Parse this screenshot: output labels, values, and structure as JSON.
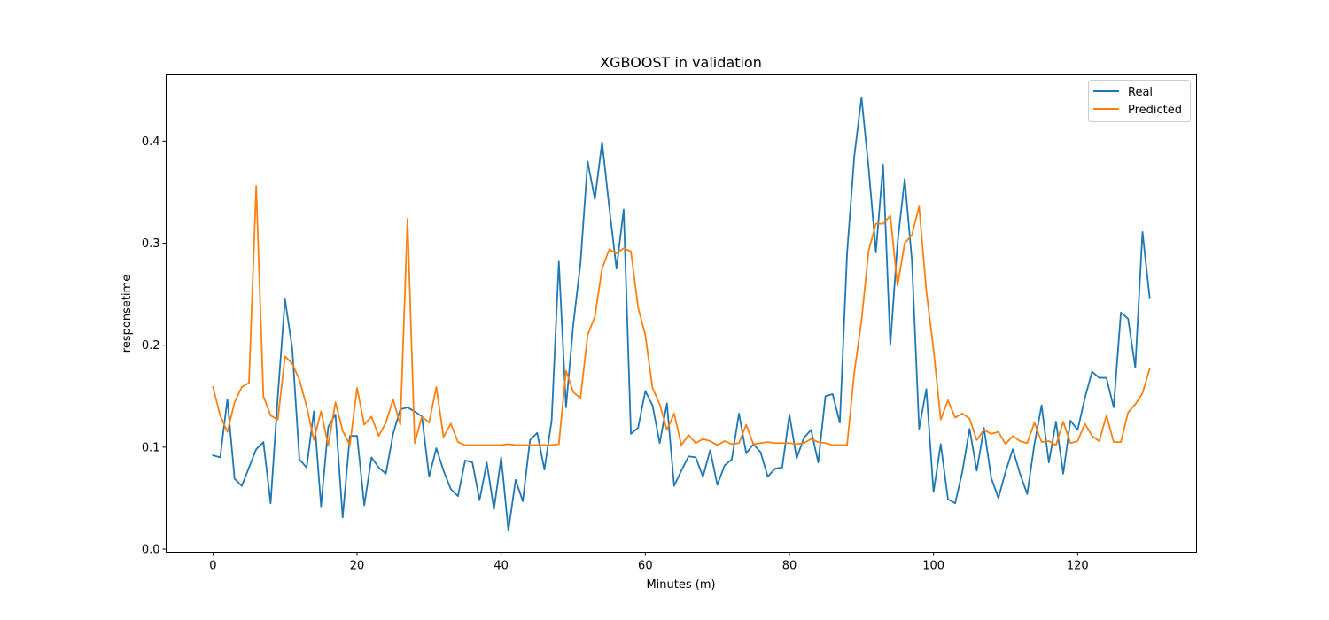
{
  "chart_data": {
    "type": "line",
    "title": "XGBOOST in validation",
    "xlabel": "Minutes (m)",
    "ylabel": "responsetime",
    "xlim": [
      -6.5,
      136.5
    ],
    "ylim": [
      -0.003,
      0.465
    ],
    "xticks": [
      0,
      20,
      40,
      60,
      80,
      100,
      120
    ],
    "yticks": [
      0.0,
      0.1,
      0.2,
      0.3,
      0.4
    ],
    "ytick_labels": [
      "0.0",
      "0.1",
      "0.2",
      "0.3",
      "0.4"
    ],
    "grid": false,
    "legend_position": "top-right",
    "colors": {
      "Real": "#1f77b4",
      "Predicted": "#ff7f0e"
    },
    "x": [
      0,
      1,
      2,
      3,
      4,
      5,
      6,
      7,
      8,
      9,
      10,
      11,
      12,
      13,
      14,
      15,
      16,
      17,
      18,
      19,
      20,
      21,
      22,
      23,
      24,
      25,
      26,
      27,
      28,
      29,
      30,
      31,
      32,
      33,
      34,
      35,
      36,
      37,
      38,
      39,
      40,
      41,
      42,
      43,
      44,
      45,
      46,
      47,
      48,
      49,
      50,
      51,
      52,
      53,
      54,
      55,
      56,
      57,
      58,
      59,
      60,
      61,
      62,
      63,
      64,
      65,
      66,
      67,
      68,
      69,
      70,
      71,
      72,
      73,
      74,
      75,
      76,
      77,
      78,
      79,
      80,
      81,
      82,
      83,
      84,
      85,
      86,
      87,
      88,
      89,
      90,
      91,
      92,
      93,
      94,
      95,
      96,
      97,
      98,
      99,
      100,
      101,
      102,
      103,
      104,
      105,
      106,
      107,
      108,
      109,
      110,
      111,
      112,
      113,
      114,
      115,
      116,
      117,
      118,
      119,
      120,
      121,
      122,
      123,
      124,
      125,
      126,
      127,
      128,
      129,
      130
    ],
    "series": [
      {
        "name": "Real",
        "values": [
          0.092,
          0.09,
          0.147,
          0.069,
          0.062,
          0.08,
          0.098,
          0.105,
          0.045,
          0.15,
          0.245,
          0.197,
          0.088,
          0.08,
          0.135,
          0.042,
          0.12,
          0.132,
          0.031,
          0.111,
          0.111,
          0.043,
          0.09,
          0.08,
          0.074,
          0.113,
          0.137,
          0.139,
          0.135,
          0.13,
          0.071,
          0.099,
          0.077,
          0.059,
          0.052,
          0.087,
          0.085,
          0.048,
          0.085,
          0.039,
          0.09,
          0.018,
          0.068,
          0.047,
          0.107,
          0.114,
          0.078,
          0.126,
          0.282,
          0.139,
          0.22,
          0.28,
          0.38,
          0.343,
          0.399,
          0.335,
          0.275,
          0.333,
          0.113,
          0.119,
          0.155,
          0.141,
          0.104,
          0.143,
          0.062,
          0.077,
          0.091,
          0.09,
          0.071,
          0.097,
          0.063,
          0.082,
          0.088,
          0.133,
          0.094,
          0.103,
          0.095,
          0.071,
          0.079,
          0.08,
          0.132,
          0.089,
          0.109,
          0.117,
          0.085,
          0.15,
          0.152,
          0.124,
          0.29,
          0.385,
          0.443,
          0.373,
          0.291,
          0.377,
          0.2,
          0.3,
          0.363,
          0.283,
          0.118,
          0.157,
          0.056,
          0.103,
          0.049,
          0.045,
          0.076,
          0.118,
          0.077,
          0.119,
          0.07,
          0.05,
          0.076,
          0.098,
          0.074,
          0.054,
          0.103,
          0.141,
          0.085,
          0.125,
          0.074,
          0.126,
          0.117,
          0.148,
          0.174,
          0.168,
          0.168,
          0.139,
          0.232,
          0.226,
          0.178,
          0.311,
          0.246
        ]
      },
      {
        "name": "Predicted",
        "values": [
          0.159,
          0.131,
          0.115,
          0.144,
          0.159,
          0.163,
          0.356,
          0.15,
          0.131,
          0.127,
          0.189,
          0.182,
          0.166,
          0.14,
          0.107,
          0.135,
          0.102,
          0.144,
          0.116,
          0.102,
          0.158,
          0.122,
          0.13,
          0.111,
          0.124,
          0.147,
          0.122,
          0.324,
          0.104,
          0.13,
          0.124,
          0.159,
          0.11,
          0.123,
          0.105,
          0.102,
          0.102,
          0.102,
          0.102,
          0.102,
          0.102,
          0.103,
          0.102,
          0.102,
          0.102,
          0.102,
          0.102,
          0.102,
          0.103,
          0.175,
          0.154,
          0.148,
          0.21,
          0.228,
          0.275,
          0.294,
          0.29,
          0.295,
          0.292,
          0.237,
          0.21,
          0.158,
          0.142,
          0.117,
          0.133,
          0.102,
          0.112,
          0.104,
          0.108,
          0.106,
          0.102,
          0.106,
          0.103,
          0.104,
          0.122,
          0.103,
          0.104,
          0.105,
          0.104,
          0.104,
          0.104,
          0.103,
          0.104,
          0.108,
          0.105,
          0.104,
          0.102,
          0.102,
          0.102,
          0.173,
          0.224,
          0.293,
          0.319,
          0.319,
          0.327,
          0.258,
          0.3,
          0.308,
          0.336,
          0.253,
          0.196,
          0.127,
          0.146,
          0.129,
          0.133,
          0.128,
          0.107,
          0.117,
          0.113,
          0.115,
          0.103,
          0.111,
          0.106,
          0.104,
          0.124,
          0.105,
          0.106,
          0.102,
          0.125,
          0.104,
          0.106,
          0.123,
          0.111,
          0.106,
          0.131,
          0.105,
          0.105,
          0.134,
          0.142,
          0.153,
          0.177
        ]
      }
    ]
  }
}
